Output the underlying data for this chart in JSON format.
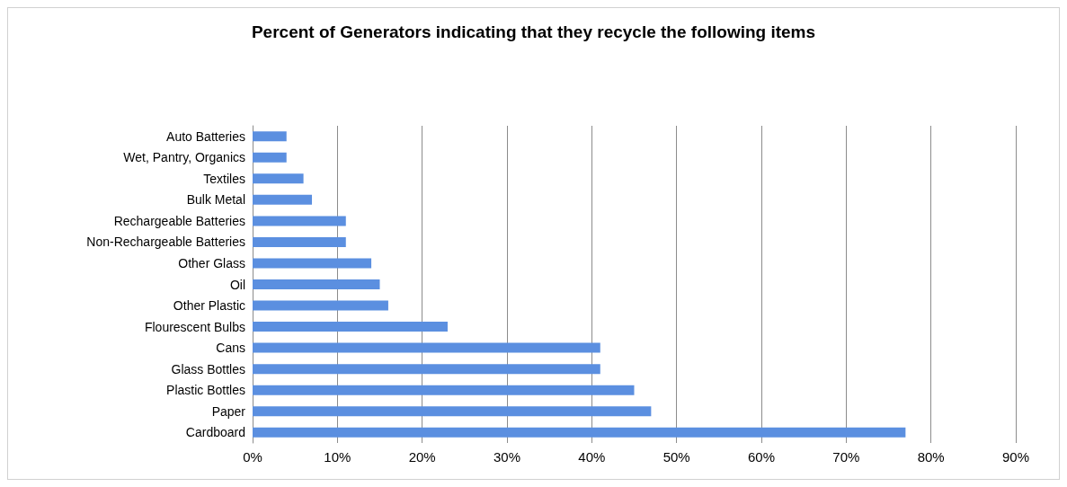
{
  "chart_data": {
    "type": "bar",
    "orientation": "horizontal",
    "title": "Percent of Generators indicating that they recycle the following items",
    "categories": [
      "Auto Batteries",
      "Wet, Pantry, Organics",
      "Textiles",
      "Bulk Metal",
      "Rechargeable Batteries",
      "Non-Rechargeable Batteries",
      "Other Glass",
      "Oil",
      "Other Plastic",
      "Flourescent Bulbs",
      "Cans",
      "Glass Bottles",
      "Plastic Bottles",
      "Paper",
      "Cardboard"
    ],
    "values": [
      4,
      4,
      6,
      7,
      11,
      11,
      14,
      15,
      16,
      23,
      41,
      41,
      45,
      47,
      77
    ],
    "color": "#5b8fe0",
    "xlim": [
      0,
      90
    ],
    "xticks": [
      {
        "value": 0,
        "label": "0%"
      },
      {
        "value": 10,
        "label": "10%"
      },
      {
        "value": 20,
        "label": "20%"
      },
      {
        "value": 30,
        "label": "30%"
      },
      {
        "value": 40,
        "label": "40%"
      },
      {
        "value": 50,
        "label": "50%"
      },
      {
        "value": 60,
        "label": "60%"
      },
      {
        "value": 70,
        "label": "70%"
      },
      {
        "value": 80,
        "label": "80%"
      },
      {
        "value": 90,
        "label": "90%"
      }
    ],
    "grid": "x"
  }
}
